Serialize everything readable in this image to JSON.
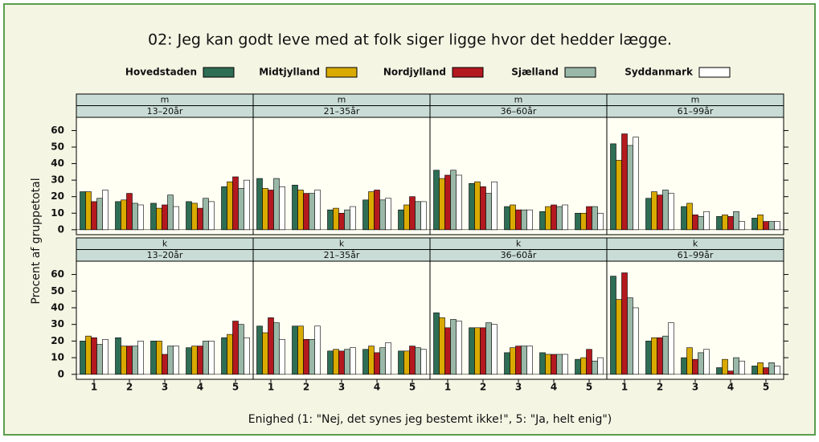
{
  "chart_data": {
    "type": "bar",
    "title": "02: Jeg kan godt leve med at folk siger ligge hvor det hedder lægge.",
    "x_label": "Enighed (1: \"Nej, det synes jeg bestemt ikke!\", 5: \"Ja, helt enig\")",
    "y_label": "Procent af gruppetotal",
    "categories": [
      "1",
      "2",
      "3",
      "4",
      "5"
    ],
    "ylim": [
      -3,
      68
    ],
    "yticks": [
      0,
      10,
      20,
      30,
      40,
      50,
      60
    ],
    "series": [
      {
        "name": "Hovedstaden",
        "color": "#2e6e55"
      },
      {
        "name": "Midtjylland",
        "color": "#d9aa00"
      },
      {
        "name": "Nordjylland",
        "color": "#b3191e"
      },
      {
        "name": "Sjælland",
        "color": "#9ab8a8"
      },
      {
        "name": "Syddanmark",
        "color": "#ffffff"
      }
    ],
    "panels": [
      {
        "sex": "m",
        "age": "13–20år",
        "values": [
          [
            23,
            17,
            16,
            17,
            26
          ],
          [
            23,
            18,
            13,
            16,
            29
          ],
          [
            17,
            22,
            15,
            13,
            32
          ],
          [
            19,
            16,
            21,
            19,
            25
          ],
          [
            24,
            15,
            14,
            17,
            30
          ]
        ]
      },
      {
        "sex": "m",
        "age": "21–35år",
        "values": [
          [
            31,
            27,
            12,
            18,
            12
          ],
          [
            25,
            24,
            13,
            23,
            15
          ],
          [
            24,
            22,
            10,
            24,
            20
          ],
          [
            31,
            22,
            12,
            18,
            17
          ],
          [
            26,
            24,
            14,
            19,
            17
          ]
        ]
      },
      {
        "sex": "m",
        "age": "36–60år",
        "values": [
          [
            36,
            28,
            14,
            11,
            10
          ],
          [
            31,
            29,
            15,
            14,
            10
          ],
          [
            33,
            26,
            12,
            15,
            14
          ],
          [
            36,
            22,
            12,
            14,
            14
          ],
          [
            33,
            29,
            12,
            15,
            10
          ]
        ]
      },
      {
        "sex": "m",
        "age": "61–99år",
        "values": [
          [
            52,
            19,
            14,
            8,
            7
          ],
          [
            42,
            23,
            16,
            9,
            9
          ],
          [
            58,
            21,
            9,
            8,
            5
          ],
          [
            51,
            24,
            8,
            11,
            5
          ],
          [
            56,
            22,
            11,
            5,
            5
          ]
        ]
      },
      {
        "sex": "k",
        "age": "13–20år",
        "values": [
          [
            20,
            22,
            20,
            16,
            22
          ],
          [
            23,
            17,
            20,
            17,
            24
          ],
          [
            22,
            17,
            12,
            17,
            32
          ],
          [
            18,
            17,
            17,
            20,
            30
          ],
          [
            21,
            20,
            17,
            20,
            22
          ]
        ]
      },
      {
        "sex": "k",
        "age": "21–35år",
        "values": [
          [
            29,
            29,
            14,
            15,
            14
          ],
          [
            25,
            29,
            15,
            17,
            14
          ],
          [
            34,
            21,
            14,
            13,
            17
          ],
          [
            31,
            21,
            15,
            16,
            16
          ],
          [
            21,
            29,
            16,
            19,
            15
          ]
        ]
      },
      {
        "sex": "k",
        "age": "36–60år",
        "values": [
          [
            37,
            28,
            13,
            13,
            9
          ],
          [
            34,
            28,
            16,
            12,
            10
          ],
          [
            28,
            28,
            17,
            12,
            15
          ],
          [
            33,
            31,
            17,
            12,
            8
          ],
          [
            32,
            30,
            17,
            12,
            10
          ]
        ]
      },
      {
        "sex": "k",
        "age": "61–99år",
        "values": [
          [
            59,
            20,
            10,
            4,
            5
          ],
          [
            45,
            22,
            16,
            9,
            7
          ],
          [
            61,
            22,
            9,
            2,
            4
          ],
          [
            46,
            23,
            13,
            10,
            7
          ],
          [
            40,
            31,
            15,
            8,
            5
          ]
        ]
      }
    ]
  }
}
